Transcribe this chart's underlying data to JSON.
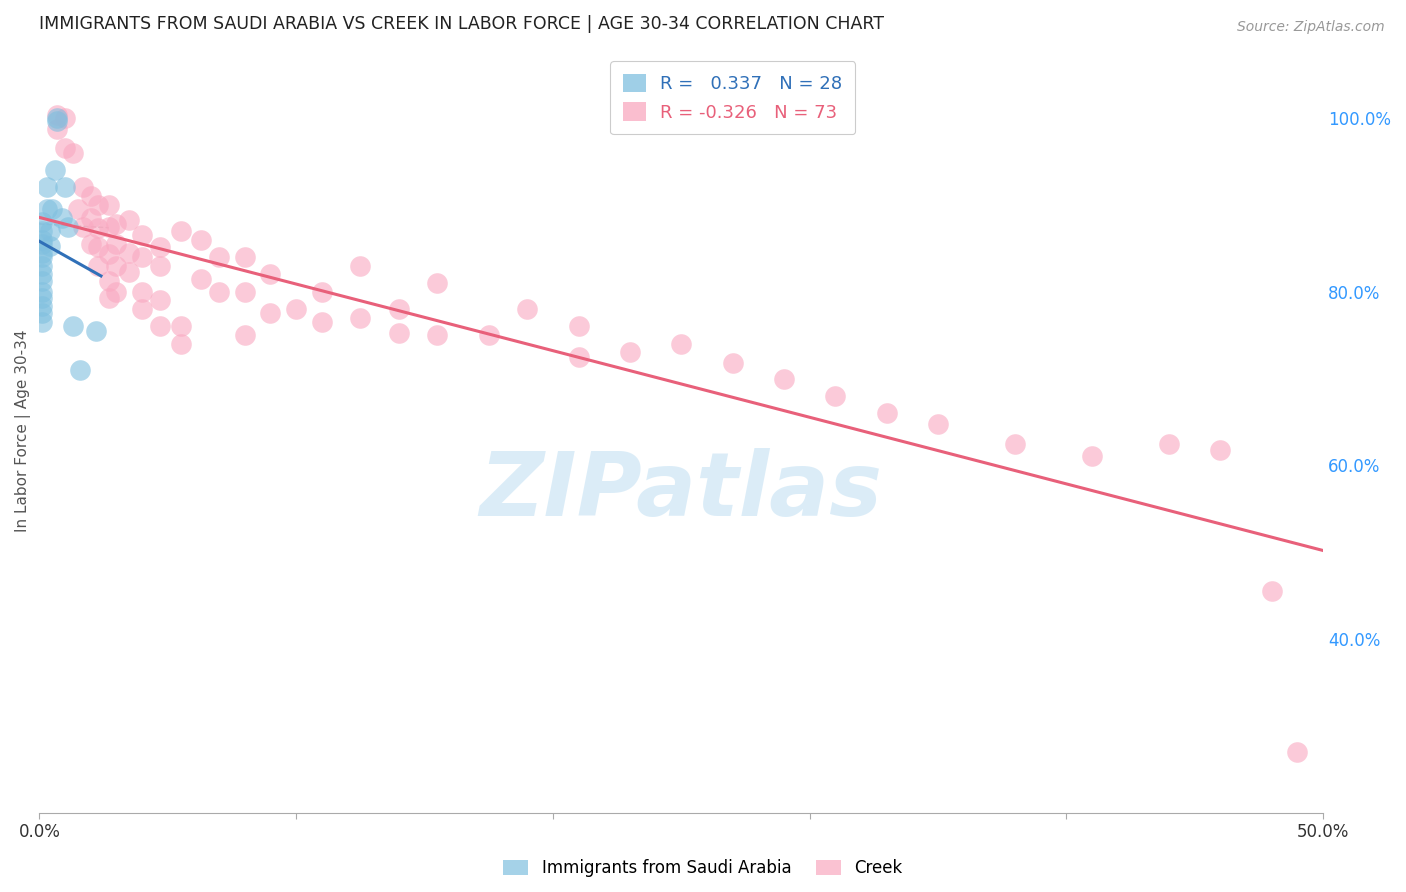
{
  "title": "IMMIGRANTS FROM SAUDI ARABIA VS CREEK IN LABOR FORCE | AGE 30-34 CORRELATION CHART",
  "source": "Source: ZipAtlas.com",
  "ylabel": "In Labor Force | Age 30-34",
  "xmin": 0.0,
  "xmax": 0.5,
  "ymin": 0.2,
  "ymax": 1.08,
  "legend_r_blue": "0.337",
  "legend_n_blue": "28",
  "legend_r_pink": "-0.326",
  "legend_n_pink": "73",
  "blue_color": "#7fbfdf",
  "pink_color": "#f9a8c0",
  "blue_line_color": "#3070b8",
  "pink_line_color": "#e8607a",
  "dash_color": "#c0c0c0",
  "background_color": "#ffffff",
  "grid_color": "#d0d0d0",
  "right_tick_color": "#3399ff",
  "watermark_color": "#cce5f5",
  "blue_points": [
    [
      0.001,
      0.88
    ],
    [
      0.001,
      0.87
    ],
    [
      0.001,
      0.86
    ],
    [
      0.001,
      0.855
    ],
    [
      0.001,
      0.845
    ],
    [
      0.001,
      0.84
    ],
    [
      0.001,
      0.83
    ],
    [
      0.001,
      0.82
    ],
    [
      0.001,
      0.812
    ],
    [
      0.001,
      0.8
    ],
    [
      0.001,
      0.793
    ],
    [
      0.001,
      0.783
    ],
    [
      0.001,
      0.775
    ],
    [
      0.001,
      0.765
    ],
    [
      0.003,
      0.92
    ],
    [
      0.003,
      0.895
    ],
    [
      0.004,
      0.87
    ],
    [
      0.004,
      0.853
    ],
    [
      0.005,
      0.895
    ],
    [
      0.006,
      0.94
    ],
    [
      0.007,
      1.0
    ],
    [
      0.007,
      0.996
    ],
    [
      0.009,
      0.885
    ],
    [
      0.01,
      0.92
    ],
    [
      0.011,
      0.875
    ],
    [
      0.013,
      0.76
    ],
    [
      0.016,
      0.71
    ],
    [
      0.022,
      0.755
    ]
  ],
  "pink_points": [
    [
      0.007,
      1.003
    ],
    [
      0.007,
      0.987
    ],
    [
      0.01,
      1.0
    ],
    [
      0.01,
      0.965
    ],
    [
      0.013,
      0.96
    ],
    [
      0.015,
      0.895
    ],
    [
      0.017,
      0.92
    ],
    [
      0.017,
      0.875
    ],
    [
      0.02,
      0.91
    ],
    [
      0.02,
      0.885
    ],
    [
      0.02,
      0.855
    ],
    [
      0.023,
      0.9
    ],
    [
      0.023,
      0.873
    ],
    [
      0.023,
      0.852
    ],
    [
      0.023,
      0.83
    ],
    [
      0.027,
      0.9
    ],
    [
      0.027,
      0.875
    ],
    [
      0.027,
      0.843
    ],
    [
      0.027,
      0.812
    ],
    [
      0.027,
      0.793
    ],
    [
      0.03,
      0.878
    ],
    [
      0.03,
      0.855
    ],
    [
      0.03,
      0.83
    ],
    [
      0.03,
      0.8
    ],
    [
      0.035,
      0.882
    ],
    [
      0.035,
      0.845
    ],
    [
      0.035,
      0.823
    ],
    [
      0.04,
      0.865
    ],
    [
      0.04,
      0.84
    ],
    [
      0.04,
      0.8
    ],
    [
      0.04,
      0.78
    ],
    [
      0.047,
      0.852
    ],
    [
      0.047,
      0.83
    ],
    [
      0.047,
      0.79
    ],
    [
      0.047,
      0.76
    ],
    [
      0.055,
      0.87
    ],
    [
      0.055,
      0.76
    ],
    [
      0.055,
      0.74
    ],
    [
      0.063,
      0.86
    ],
    [
      0.063,
      0.815
    ],
    [
      0.07,
      0.84
    ],
    [
      0.07,
      0.8
    ],
    [
      0.08,
      0.84
    ],
    [
      0.08,
      0.8
    ],
    [
      0.08,
      0.75
    ],
    [
      0.09,
      0.82
    ],
    [
      0.09,
      0.775
    ],
    [
      0.1,
      0.78
    ],
    [
      0.11,
      0.8
    ],
    [
      0.11,
      0.765
    ],
    [
      0.125,
      0.83
    ],
    [
      0.125,
      0.77
    ],
    [
      0.14,
      0.78
    ],
    [
      0.14,
      0.753
    ],
    [
      0.155,
      0.81
    ],
    [
      0.155,
      0.75
    ],
    [
      0.175,
      0.75
    ],
    [
      0.19,
      0.78
    ],
    [
      0.21,
      0.76
    ],
    [
      0.21,
      0.725
    ],
    [
      0.23,
      0.73
    ],
    [
      0.25,
      0.74
    ],
    [
      0.27,
      0.718
    ],
    [
      0.29,
      0.7
    ],
    [
      0.31,
      0.68
    ],
    [
      0.33,
      0.66
    ],
    [
      0.35,
      0.648
    ],
    [
      0.38,
      0.625
    ],
    [
      0.41,
      0.611
    ],
    [
      0.44,
      0.625
    ],
    [
      0.46,
      0.618
    ],
    [
      0.48,
      0.456
    ],
    [
      0.49,
      0.27
    ]
  ],
  "watermark": "ZIPatlas"
}
